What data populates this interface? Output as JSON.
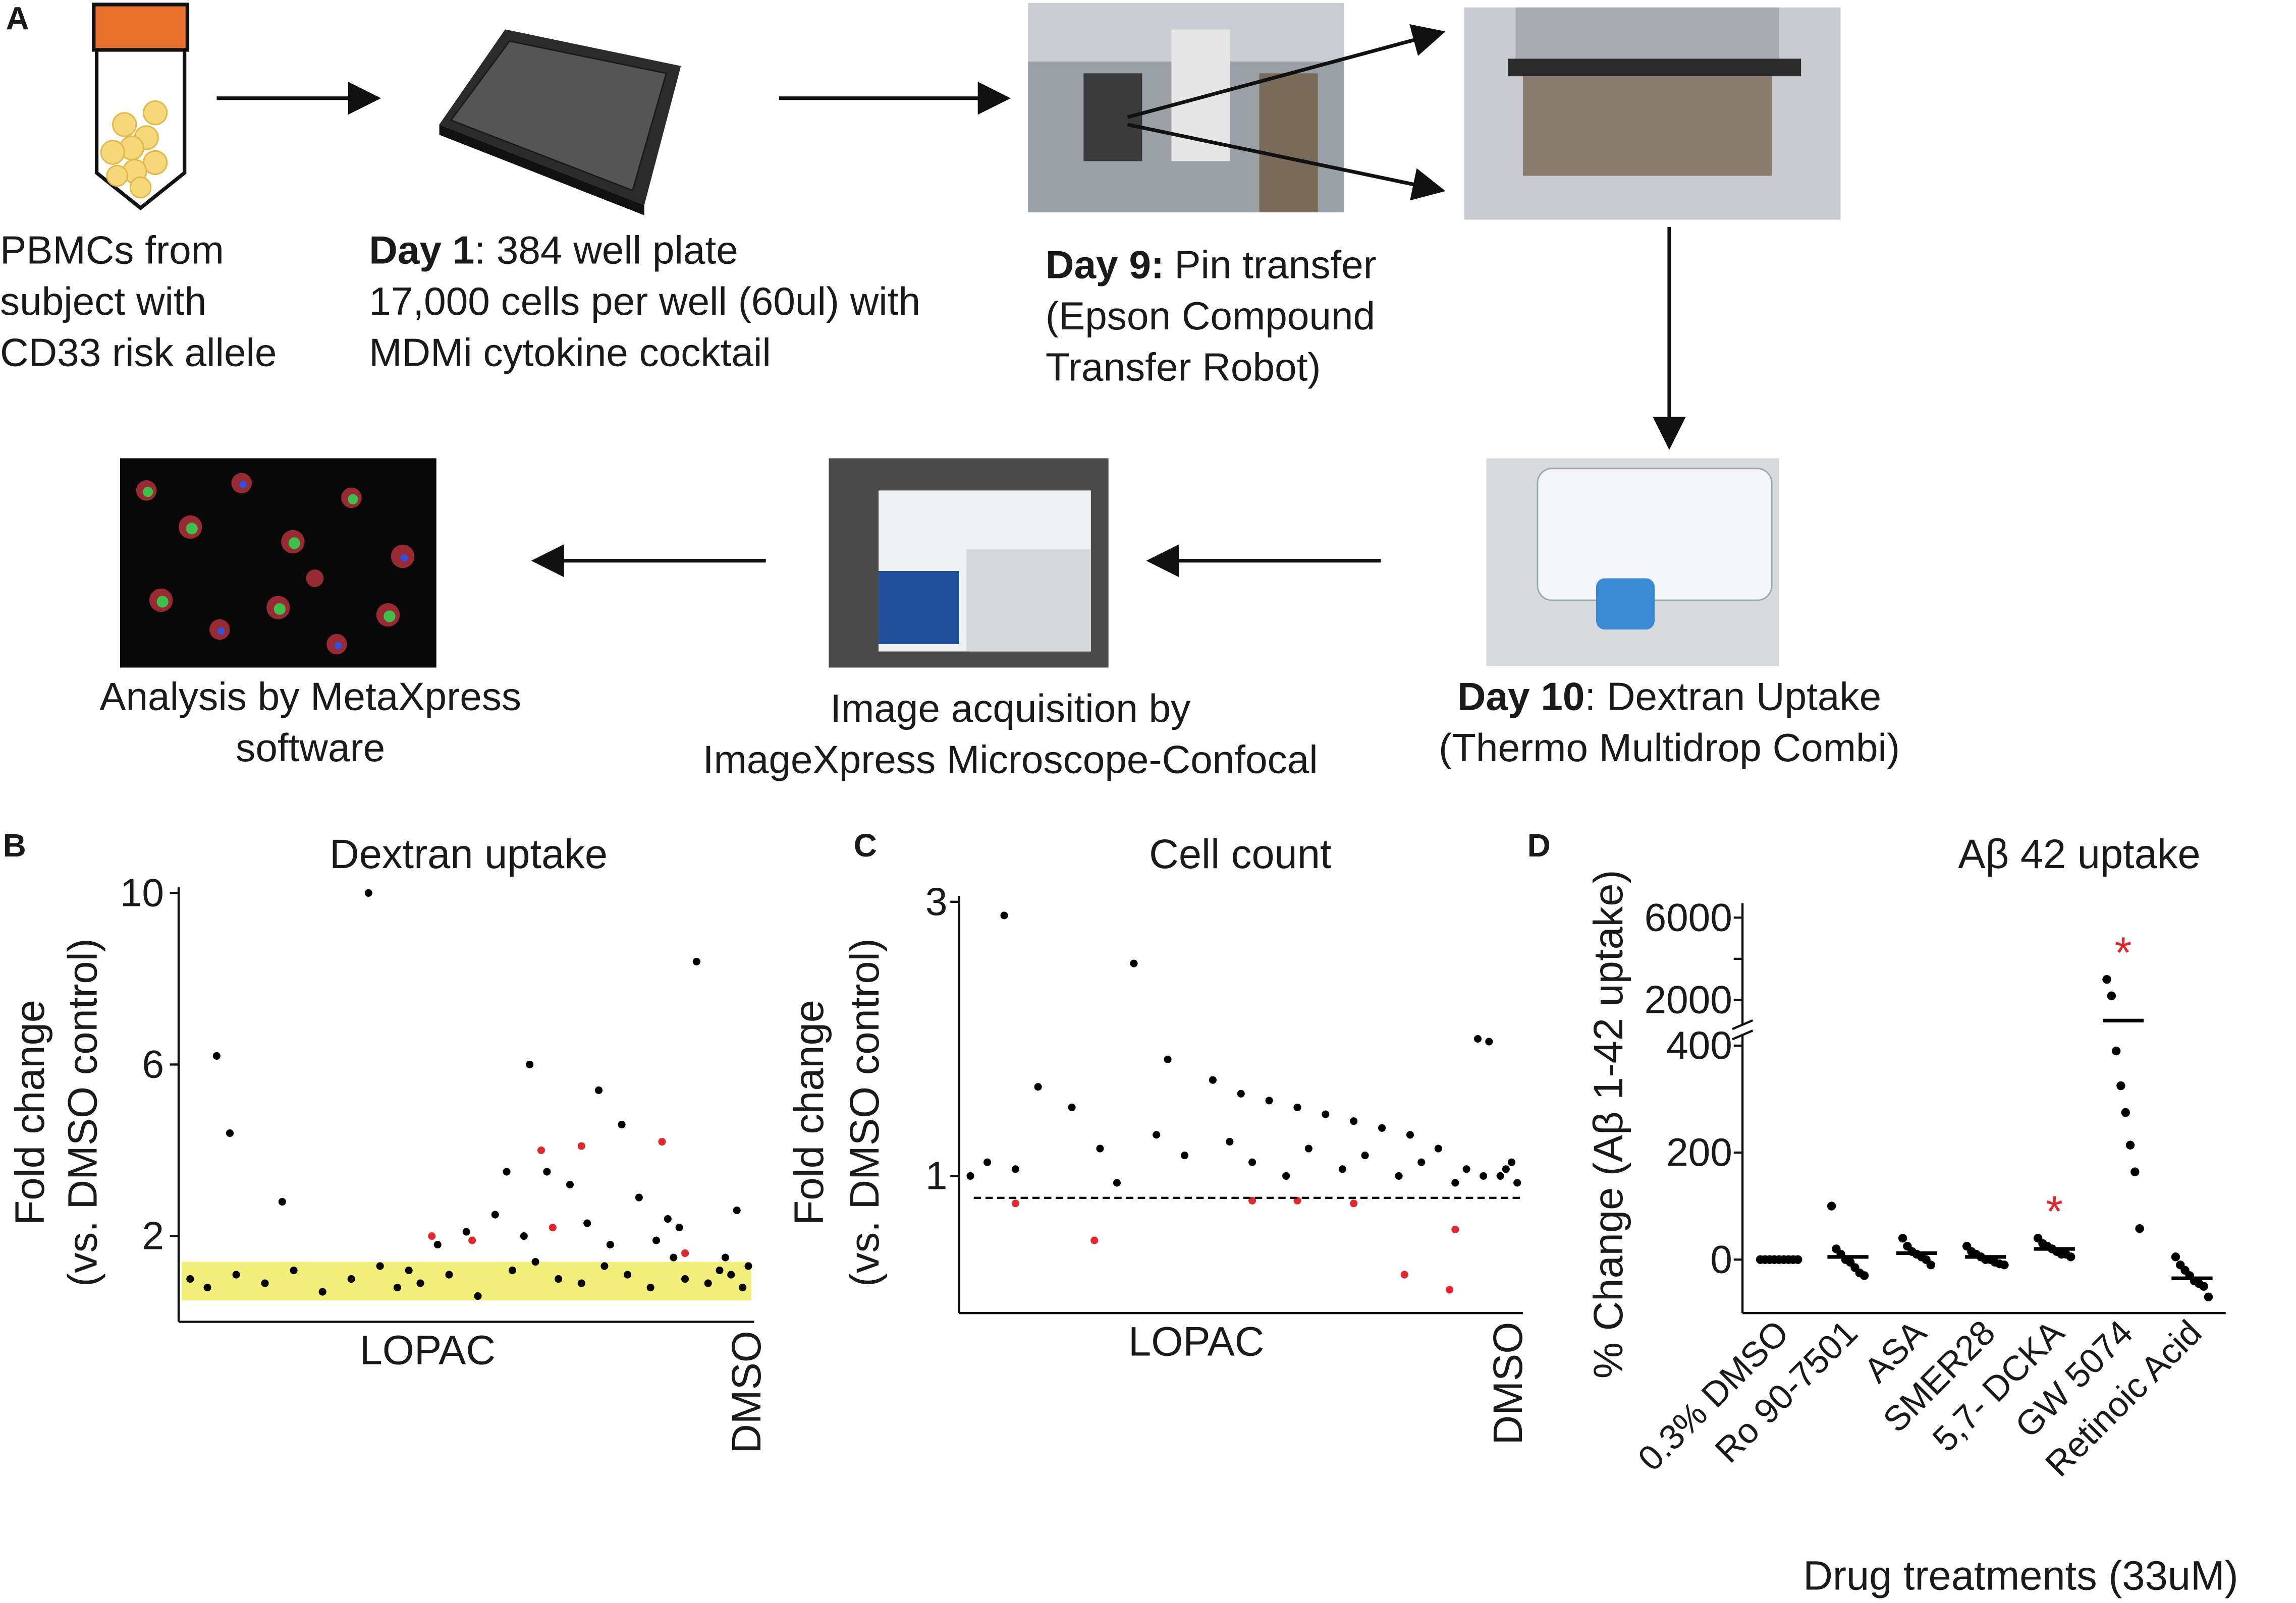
{
  "panel_a": {
    "label": "A",
    "steps": [
      {
        "lines": [
          "PBMCs from",
          "subject with",
          "CD33 risk allele"
        ]
      },
      {
        "bold": "Day 1",
        "lines": [
          ": 384 well plate",
          "17,000 cells per well (60ul) with",
          "MDMi cytokine cocktail"
        ]
      },
      {
        "bold": "Day 9:",
        "lines": [
          "Pin transfer",
          "(Epson Compound",
          "Transfer Robot)"
        ]
      },
      {
        "bold": "Day 10",
        "lines": [
          ": Dextran Uptake",
          "(Thermo Multidrop Combi)"
        ]
      },
      {
        "lines": [
          "Image acquisition by",
          "ImageXpress Microscope-Confocal"
        ]
      },
      {
        "lines": [
          "Analysis by MetaXpress",
          "software"
        ]
      }
    ]
  },
  "chart_data": [
    {
      "type": "scatter",
      "label": "B",
      "title": "Dextran uptake",
      "y_label": [
        "Fold change",
        "(vs. DMSO control)"
      ],
      "categories": [
        "LOPAC",
        "DMSO"
      ],
      "xlim": [
        0,
        100
      ],
      "ylim": [
        0,
        10
      ],
      "yticks": [
        2,
        6,
        10
      ],
      "band": [
        0.5,
        1.4
      ],
      "band_color": "#f2ee7a",
      "series": [
        {
          "color": "#000000",
          "x": [
            33,
            6.6,
            8.9,
            18,
            90,
            61,
            73,
            64,
            57,
            77,
            40,
            45,
            50,
            55,
            68,
            80,
            85,
            95,
            97,
            99,
            2,
            5,
            10,
            15,
            20,
            25,
            30,
            35,
            38,
            42,
            47,
            52,
            58,
            62,
            66,
            70,
            74,
            78,
            82,
            86,
            88,
            92,
            94,
            96,
            98,
            60,
            71,
            75,
            83,
            87
          ],
          "values": [
            10,
            6.2,
            4.4,
            2.8,
            8.4,
            6,
            5.4,
            3.5,
            3.5,
            4.6,
            1.2,
            1.8,
            2.1,
            2.5,
            3.2,
            2.9,
            2.4,
            1.5,
            2.6,
            1.3,
            1.0,
            0.8,
            1.1,
            0.9,
            1.2,
            0.7,
            1.0,
            1.3,
            0.8,
            0.9,
            1.1,
            0.6,
            1.2,
            1.4,
            1.0,
            0.9,
            1.3,
            1.1,
            0.8,
            1.5,
            1.0,
            0.9,
            1.2,
            1.1,
            0.8,
            2.0,
            2.3,
            1.8,
            1.9,
            2.2
          ]
        },
        {
          "color": "#e0282e",
          "x": [
            63,
            70,
            84,
            65,
            44,
            51,
            88
          ],
          "values": [
            4.0,
            4.1,
            4.2,
            2.2,
            2.0,
            1.9,
            1.6
          ]
        }
      ]
    },
    {
      "type": "scatter",
      "label": "C",
      "title": "Cell count",
      "y_label": [
        "Fold change",
        "(vs. DMSO control)"
      ],
      "categories": [
        "LOPAC",
        "DMSO"
      ],
      "xlim": [
        0,
        100
      ],
      "ylim": [
        0,
        3
      ],
      "yticks": [
        1,
        3
      ],
      "reference_line": 0.84,
      "series": [
        {
          "color": "#000000",
          "x": [
            8,
            31,
            92,
            94,
            14,
            37,
            20,
            45,
            50,
            55,
            60,
            65,
            70,
            75,
            80,
            85,
            2,
            5,
            10,
            25,
            28,
            35,
            40,
            48,
            52,
            58,
            62,
            68,
            72,
            78,
            82,
            88,
            90,
            96,
            98,
            99,
            97,
            93
          ],
          "values": [
            2.9,
            2.55,
            2.0,
            1.98,
            1.65,
            1.85,
            1.5,
            1.7,
            1.6,
            1.55,
            1.5,
            1.45,
            1.4,
            1.35,
            1.3,
            1.2,
            1.0,
            1.1,
            1.05,
            1.2,
            0.95,
            1.3,
            1.15,
            1.25,
            1.1,
            1.0,
            1.2,
            1.05,
            1.15,
            1.0,
            1.1,
            0.95,
            1.05,
            1.0,
            1.1,
            0.95,
            1.05,
            1.0
          ]
        },
        {
          "color": "#e0282e",
          "x": [
            24,
            10,
            79,
            88,
            87,
            52,
            60,
            70
          ],
          "values": [
            0.53,
            0.8,
            0.28,
            0.61,
            0.17,
            0.82,
            0.82,
            0.8
          ]
        }
      ]
    },
    {
      "type": "dot_plot",
      "label": "D",
      "title": "Aβ 42 uptake",
      "y_label": "% Change (Aβ 1-42 uptake)",
      "x_label": "Drug treatments (33uM)",
      "categories": [
        "0.3% DMSO",
        "Ro 90-7501",
        "ASA",
        "SMER28",
        "5,7- DCKA",
        "GW 5074",
        "Retinoic Acid"
      ],
      "points": [
        [
          0,
          0,
          0,
          0,
          0,
          0,
          0,
          0,
          0
        ],
        [
          100,
          20,
          10,
          0,
          -5,
          -15,
          -25,
          -30
        ],
        [
          40,
          25,
          15,
          10,
          5,
          0,
          -10
        ],
        [
          25,
          15,
          10,
          5,
          0,
          0,
          -5,
          -8,
          -10
        ],
        [
          40,
          30,
          25,
          20,
          15,
          10,
          10,
          5
        ],
        [
          3000,
          2200,
          390,
          325,
          275,
          214,
          164,
          58
        ],
        [
          5,
          -10,
          -20,
          -30,
          -40,
          -45,
          -50,
          -70
        ]
      ],
      "means": [
        0,
        5,
        12,
        5,
        20,
        1000,
        -35
      ],
      "color": "#000000",
      "ylim": [
        -100,
        420
      ],
      "yticks": [
        0,
        200,
        400
      ],
      "ylim_upper": [
        800,
        6700
      ],
      "yticks_upper": [
        2000,
        6000
      ],
      "yminor_upper": [
        4000
      ],
      "annotations": [
        {
          "category": 4,
          "text": "*",
          "color": "#e0282e"
        },
        {
          "category": 5,
          "text": "*",
          "color": "#e0282e"
        }
      ]
    }
  ]
}
